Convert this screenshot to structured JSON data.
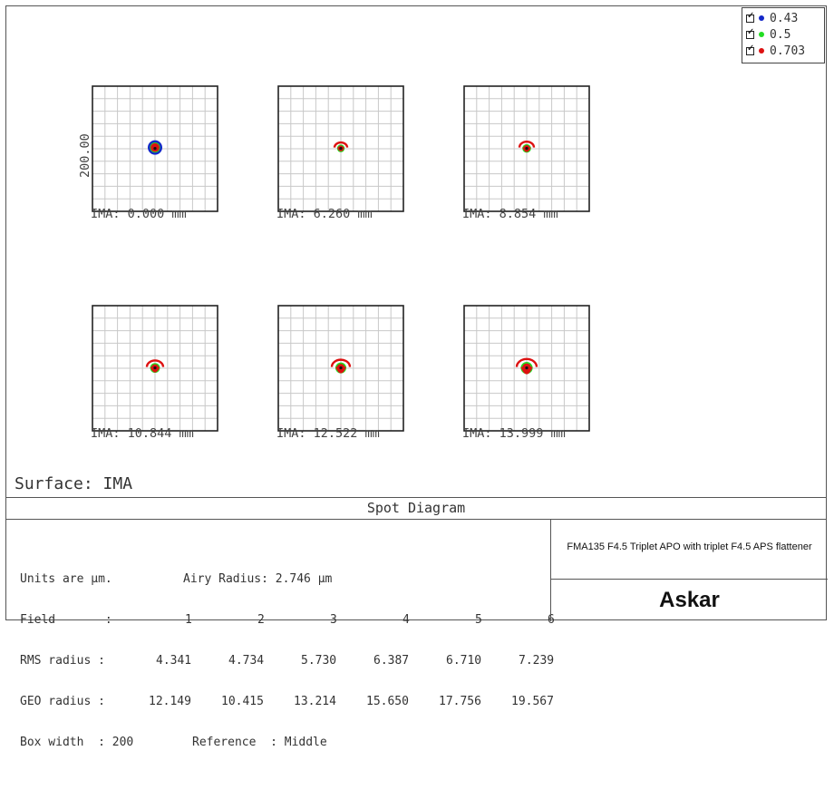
{
  "legend": [
    {
      "label": "0.43",
      "color": "#1428c8"
    },
    {
      "label": "0.5",
      "color": "#22dd22"
    },
    {
      "label": "0.703",
      "color": "#dd1111"
    }
  ],
  "chart_data": {
    "type": "scatter",
    "title": "Spot Diagram",
    "box_width": 200,
    "scale_label": "200.00",
    "units": "µm",
    "wavelengths": [
      "0.43",
      "0.5",
      "0.703"
    ],
    "spots": [
      {
        "label": "IMA: 0.000 mm",
        "r": 8,
        "vshift": 0
      },
      {
        "label": "IMA: 6.260 mm",
        "r": 7,
        "vshift": 0
      },
      {
        "label": "IMA: 8.854 mm",
        "r": 8,
        "vshift": 2
      },
      {
        "label": "IMA: 10.844 mm",
        "r": 9,
        "vshift": 3
      },
      {
        "label": "IMA: 12.522 mm",
        "r": 10,
        "vshift": 4
      },
      {
        "label": "IMA: 13.999 mm",
        "r": 11,
        "vshift": 5
      }
    ],
    "fields": [
      "1",
      "2",
      "3",
      "4",
      "5",
      "6"
    ],
    "rms_radius": [
      "4.341",
      "4.734",
      "5.730",
      "6.387",
      "6.710",
      "7.239"
    ],
    "geo_radius": [
      "12.149",
      "10.415",
      "13.214",
      "15.650",
      "17.756",
      "19.567"
    ]
  },
  "surface_label": "Surface: IMA",
  "info": {
    "title": "Spot Diagram",
    "units_text": "Units are µm.",
    "airy_text": "Airy Radius: 2.746 µm",
    "field_label": "Field       :",
    "rms_label": "RMS radius :",
    "geo_label": "GEO radius :",
    "box_text": "Box width  : 200",
    "reference_text": "Reference  : Middle",
    "lens_title": "FMA135 F4.5 Triplet APO with triplet F4.5 APS flattener",
    "logo": "Askar"
  }
}
